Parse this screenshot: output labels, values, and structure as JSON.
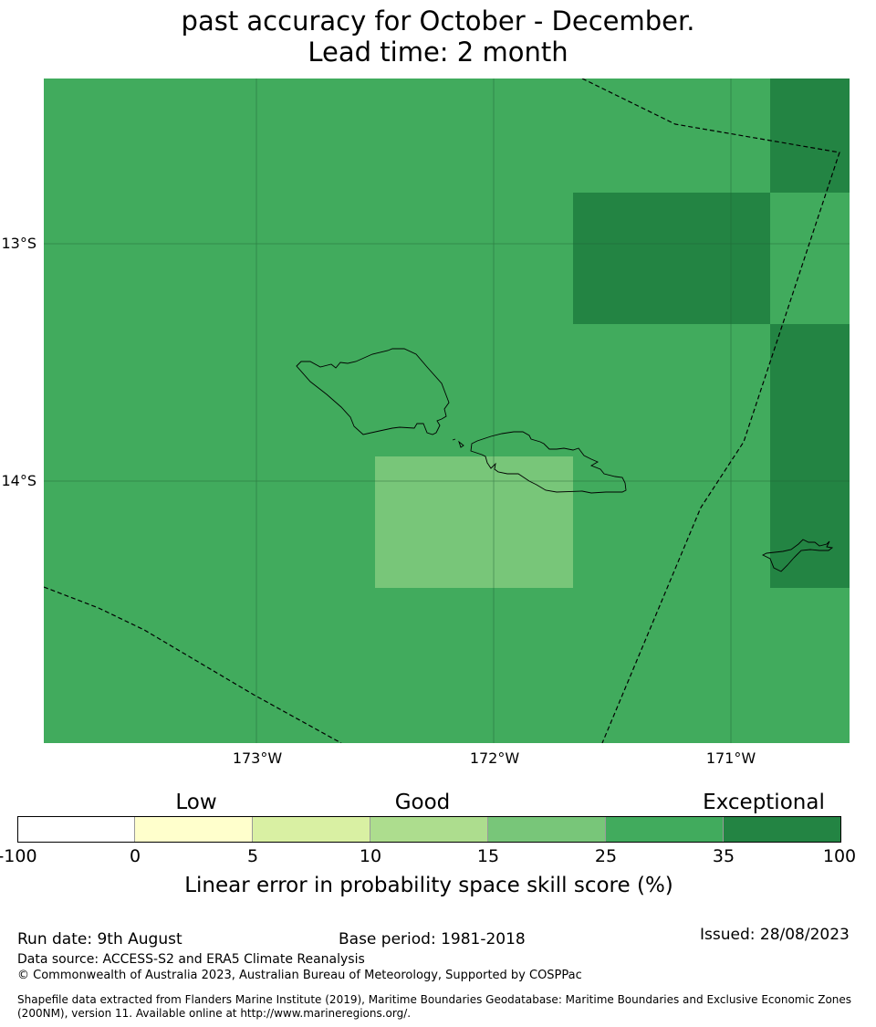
{
  "title": {
    "line1": "past accuracy for October - December.",
    "line2": "Lead time: 2 month"
  },
  "map": {
    "colors": {
      "cat_25_35": "#41ab5d",
      "cat_35_100": "#238443",
      "cat_15_25": "#78c679",
      "coastline": "#000000",
      "gridline": "#1f5f33"
    },
    "latitude_labels": [
      "13°S",
      "14°S"
    ],
    "longitude_labels": [
      "173°W",
      "172°W",
      "171°W"
    ]
  },
  "legend": {
    "category_labels": [
      "Low",
      "Good",
      "Exceptional"
    ],
    "ticks": [
      "-100",
      "0",
      "5",
      "10",
      "15",
      "25",
      "35",
      "100"
    ],
    "colors": [
      "#ffffff",
      "#ffffcc",
      "#d9f0a3",
      "#addd8e",
      "#78c679",
      "#41ab5d",
      "#238443"
    ],
    "label": "Linear error in probability space skill score (%)"
  },
  "footer": {
    "run_date": "Run date: 9th August",
    "base_period": "Base period: 1981-2018",
    "issued": "Issued: 28/08/2023",
    "data_source": "Data source: ACCESS-S2 and ERA5 Climate Reanalysis",
    "copyright": "© Commonwealth of Australia 2023, Australian Bureau of Meteorology, Supported by COSPPac",
    "shapefile_line1": "Shapefile data extracted from Flanders Marine Institute (2019), Maritime Boundaries Geodatabase: Maritime Boundaries and Exclusive Economic Zones",
    "shapefile_line2": "(200NM), version 11. Available online at http://www.marineregions.org/."
  }
}
